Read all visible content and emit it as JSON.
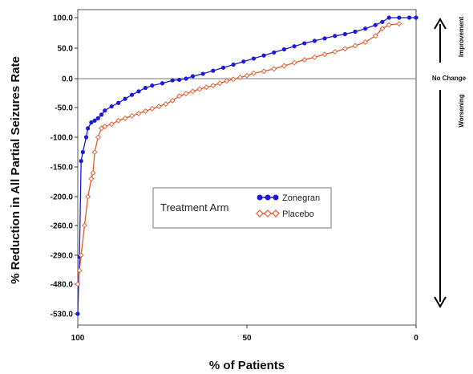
{
  "chart_data": {
    "type": "line",
    "xlabel": "% of Patients",
    "ylabel": "% Reduction in All Partial Seizures Rate",
    "x_ticks": [
      "100",
      "50",
      "0"
    ],
    "x_tick_values": [
      100,
      50,
      0
    ],
    "xlim": [
      100,
      0
    ],
    "y_tick_labels": [
      "100.0",
      "50.0",
      "0.0",
      "-50.0",
      "-100.0",
      "-150.0",
      "-200.0",
      "-260.0",
      "-290.0",
      "-480.0",
      "-530.0"
    ],
    "reference_line": {
      "y": 0,
      "label": "No Change"
    },
    "annotations": {
      "improvement": "Improvement",
      "worsening": "Worsening"
    },
    "legend": {
      "title": "Treatment Arm",
      "placement": "center-left"
    },
    "series": [
      {
        "name": "Zonegran",
        "color": "#1a1adb",
        "marker": "filled-circle",
        "points": [
          [
            100,
            -530
          ],
          [
            99.5,
            -300
          ],
          [
            99,
            -140
          ],
          [
            98.5,
            -125
          ],
          [
            97.5,
            -100
          ],
          [
            97,
            -85
          ],
          [
            96,
            -75
          ],
          [
            95,
            -72
          ],
          [
            94,
            -68
          ],
          [
            93,
            -62
          ],
          [
            92,
            -55
          ],
          [
            90,
            -48
          ],
          [
            88,
            -42
          ],
          [
            86,
            -35
          ],
          [
            84,
            -28
          ],
          [
            82,
            -22
          ],
          [
            80,
            -16
          ],
          [
            78,
            -12
          ],
          [
            75,
            -8
          ],
          [
            72,
            -3
          ],
          [
            70,
            -2
          ],
          [
            68,
            0
          ],
          [
            66,
            4
          ],
          [
            63,
            8
          ],
          [
            60,
            13
          ],
          [
            57,
            18
          ],
          [
            54,
            23
          ],
          [
            51,
            28
          ],
          [
            48,
            33
          ],
          [
            45,
            38
          ],
          [
            42,
            43
          ],
          [
            39,
            48
          ],
          [
            36,
            53
          ],
          [
            33,
            58
          ],
          [
            30,
            62
          ],
          [
            27,
            66
          ],
          [
            24,
            70
          ],
          [
            21,
            73
          ],
          [
            18,
            77
          ],
          [
            15,
            82
          ],
          [
            12,
            88
          ],
          [
            10,
            93
          ],
          [
            8,
            100
          ],
          [
            5,
            100
          ],
          [
            2,
            100
          ],
          [
            0,
            100
          ]
        ]
      },
      {
        "name": "Placebo",
        "color": "#e35a2a",
        "marker": "open-diamond",
        "points": [
          [
            100,
            -480
          ],
          [
            99.5,
            -390
          ],
          [
            99,
            -290
          ],
          [
            98,
            -260
          ],
          [
            97,
            -200
          ],
          [
            96,
            -170
          ],
          [
            95.5,
            -160
          ],
          [
            95,
            -125
          ],
          [
            94,
            -100
          ],
          [
            93,
            -85
          ],
          [
            92,
            -82
          ],
          [
            90,
            -78
          ],
          [
            88,
            -72
          ],
          [
            86,
            -68
          ],
          [
            84,
            -64
          ],
          [
            82,
            -60
          ],
          [
            80,
            -56
          ],
          [
            78,
            -52
          ],
          [
            76,
            -48
          ],
          [
            74,
            -44
          ],
          [
            72,
            -38
          ],
          [
            70,
            -30
          ],
          [
            68,
            -26
          ],
          [
            66,
            -22
          ],
          [
            64,
            -18
          ],
          [
            62,
            -15
          ],
          [
            60,
            -12
          ],
          [
            58,
            -8
          ],
          [
            56,
            -4
          ],
          [
            54,
            -1
          ],
          [
            52,
            2
          ],
          [
            50,
            5
          ],
          [
            48,
            9
          ],
          [
            45,
            12
          ],
          [
            42,
            16
          ],
          [
            39,
            21
          ],
          [
            36,
            26
          ],
          [
            33,
            31
          ],
          [
            30,
            35
          ],
          [
            27,
            40
          ],
          [
            24,
            44
          ],
          [
            21,
            49
          ],
          [
            18,
            54
          ],
          [
            15,
            60
          ],
          [
            12,
            70
          ],
          [
            10,
            82
          ],
          [
            8,
            88
          ],
          [
            5,
            90
          ]
        ]
      }
    ]
  }
}
